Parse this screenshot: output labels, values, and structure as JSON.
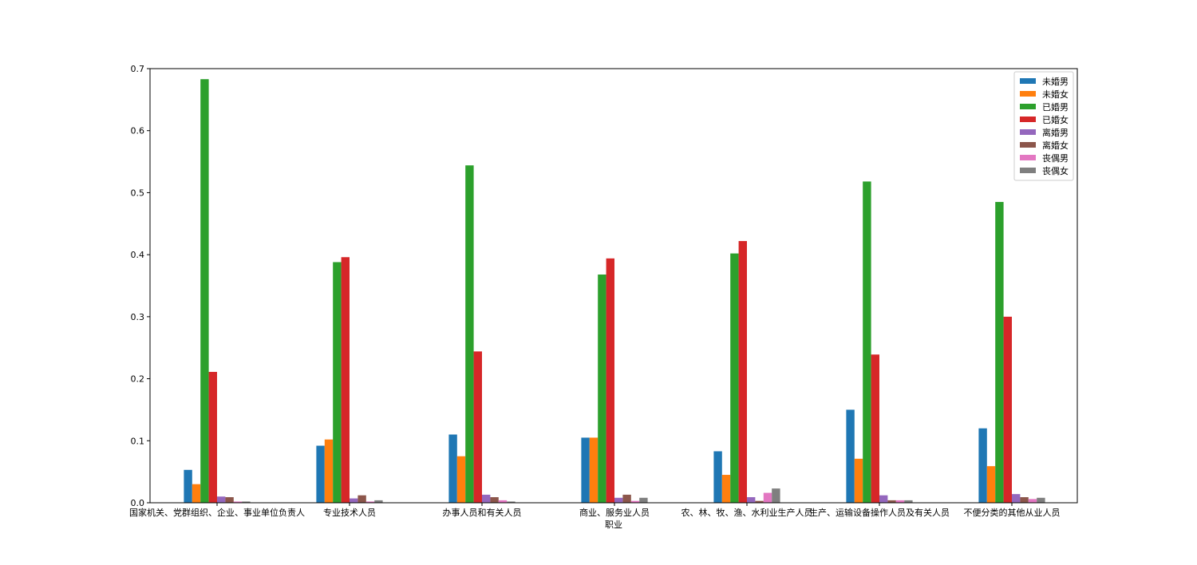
{
  "chart_data": {
    "type": "bar",
    "title": "",
    "xlabel": "职业",
    "ylabel": "",
    "ylim": [
      0,
      0.7
    ],
    "yticks": [
      0.0,
      0.1,
      0.2,
      0.3,
      0.4,
      0.5,
      0.6,
      0.7
    ],
    "ytick_labels": [
      "0.0",
      "0.1",
      "0.2",
      "0.3",
      "0.4",
      "0.5",
      "0.6",
      "0.7"
    ],
    "legend_position": "top-right",
    "grid": false,
    "categories": [
      "国家机关、党群组织、企业、事业单位负责人",
      "专业技术人员",
      "办事人员和有关人员",
      "商业、服务业人员",
      "农、林、牧、渔、水利业生产人员",
      "生产、运输设备操作人员及有关人员",
      "不便分类的其他从业人员"
    ],
    "series": [
      {
        "name": "未婚男",
        "color": "#1f77b4",
        "values": [
          0.053,
          0.092,
          0.11,
          0.105,
          0.083,
          0.15,
          0.12
        ]
      },
      {
        "name": "未婚女",
        "color": "#ff7f0e",
        "values": [
          0.03,
          0.102,
          0.075,
          0.105,
          0.045,
          0.071,
          0.059
        ]
      },
      {
        "name": "已婚男",
        "color": "#2ca02c",
        "values": [
          0.683,
          0.388,
          0.544,
          0.368,
          0.402,
          0.518,
          0.485
        ]
      },
      {
        "name": "已婚女",
        "color": "#d62728",
        "values": [
          0.211,
          0.396,
          0.244,
          0.394,
          0.422,
          0.239,
          0.3
        ]
      },
      {
        "name": "离婚男",
        "color": "#9467bd",
        "values": [
          0.01,
          0.007,
          0.013,
          0.008,
          0.009,
          0.012,
          0.014
        ]
      },
      {
        "name": "离婚女",
        "color": "#8c564b",
        "values": [
          0.009,
          0.012,
          0.009,
          0.013,
          0.003,
          0.004,
          0.009
        ]
      },
      {
        "name": "丧偶男",
        "color": "#e377c2",
        "values": [
          0.002,
          0.002,
          0.004,
          0.003,
          0.016,
          0.004,
          0.006
        ]
      },
      {
        "name": "丧偶女",
        "color": "#7f7f7f",
        "values": [
          0.002,
          0.004,
          0.002,
          0.008,
          0.023,
          0.004,
          0.008
        ]
      }
    ]
  }
}
